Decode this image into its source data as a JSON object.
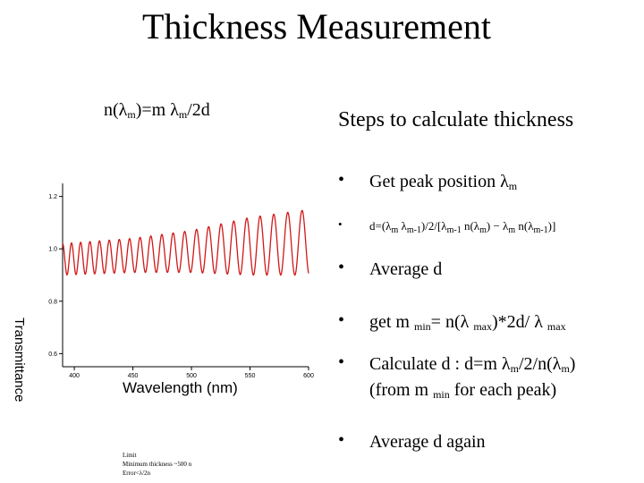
{
  "slide": {
    "title": "Thickness Measurement",
    "formula": {
      "lhs": "n(λ",
      "lhs_sub": "m",
      "mid": ")=m λ",
      "rhs_sub": "m",
      "rhs": "/2d"
    },
    "steps_heading": "Steps to calculate thickness",
    "bullet_glyph": "•",
    "steps": [
      {
        "parts": [
          "Get peak position λ",
          "m"
        ]
      },
      {
        "parts": [
          "d=(λ",
          "m",
          " λ",
          "m-1",
          ")/2/[λ",
          "m-1",
          " n(λ",
          "m",
          ") − λ",
          "m",
          " n(λ",
          "m-1",
          ")]"
        ]
      },
      {
        "parts": [
          "Average d"
        ]
      },
      {
        "parts": [
          "get m ",
          "min",
          "= n(λ ",
          "max",
          ")*2d/ λ ",
          "max"
        ]
      },
      {
        "line1": [
          "Calculate d : d=m λ",
          "m",
          "/2/n(λ",
          "m",
          ")"
        ],
        "line2": [
          "(from m ",
          "min",
          " for each peak)"
        ]
      },
      {
        "parts": [
          "Average d again"
        ]
      }
    ],
    "notes": [
      "Limit",
      "Minimum thickness ~500 n",
      "Error<λ/2n"
    ]
  },
  "chart_data": {
    "type": "line",
    "title": "",
    "xlabel": "Wavelength (nm)",
    "ylabel": "Transmittance",
    "xlim": [
      390,
      600
    ],
    "ylim": [
      0.55,
      1.25
    ],
    "x_ticks": [
      400,
      450,
      500,
      550,
      600
    ],
    "y_ticks": [
      0.6,
      0.8,
      1.0,
      1.2
    ],
    "tick_labels_x": [
      "400",
      "450",
      "500",
      "550",
      "600"
    ],
    "tick_labels_y": [
      "0.6",
      "0.8",
      "1.0",
      "1.2"
    ],
    "series": [
      {
        "color": "#d01818",
        "description_of_shape": "interference fringes",
        "x_start": 390,
        "x_end": 600,
        "envelope_max": [
          [
            390,
            1.02
          ],
          [
            450,
            1.04
          ],
          [
            500,
            1.07
          ],
          [
            550,
            1.12
          ],
          [
            600,
            1.15
          ]
        ],
        "envelope_min": [
          [
            390,
            0.9
          ],
          [
            450,
            0.91
          ],
          [
            500,
            0.91
          ],
          [
            550,
            0.9
          ],
          [
            600,
            0.9
          ]
        ],
        "fringe_spacing_nm": [
          [
            390,
            7.5
          ],
          [
            600,
            12.5
          ]
        ]
      }
    ],
    "grid": false
  }
}
